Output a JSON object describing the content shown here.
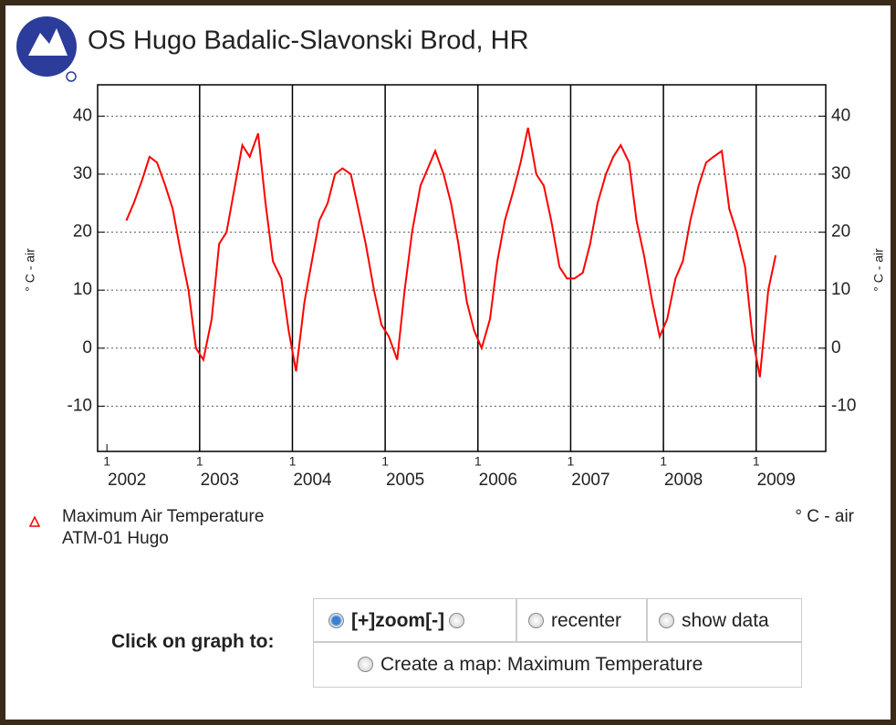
{
  "chart_data": {
    "type": "line",
    "title": "OS Hugo Badalic-Slavonski Brod, HR",
    "y_label": "° C - air",
    "x_day_label": "1",
    "x": [
      2002.21,
      2002.29,
      2002.38,
      2002.46,
      2002.54,
      2002.63,
      2002.71,
      2002.79,
      2002.88,
      2002.96,
      2003.04,
      2003.13,
      2003.21,
      2003.29,
      2003.38,
      2003.46,
      2003.54,
      2003.63,
      2003.71,
      2003.79,
      2003.88,
      2003.96,
      2004.04,
      2004.13,
      2004.21,
      2004.29,
      2004.38,
      2004.46,
      2004.54,
      2004.63,
      2004.71,
      2004.79,
      2004.88,
      2004.96,
      2005.04,
      2005.13,
      2005.21,
      2005.29,
      2005.38,
      2005.46,
      2005.54,
      2005.63,
      2005.71,
      2005.79,
      2005.88,
      2005.96,
      2006.04,
      2006.13,
      2006.21,
      2006.29,
      2006.38,
      2006.46,
      2006.54,
      2006.63,
      2006.71,
      2006.79,
      2006.88,
      2006.96,
      2007.04,
      2007.13,
      2007.21,
      2007.29,
      2007.38,
      2007.46,
      2007.54,
      2007.63,
      2007.71,
      2007.79,
      2007.88,
      2007.96,
      2008.04,
      2008.13,
      2008.21,
      2008.29,
      2008.38,
      2008.46,
      2008.54,
      2008.63,
      2008.71,
      2008.79,
      2008.88,
      2008.96,
      2009.04,
      2009.13,
      2009.21
    ],
    "series": [
      {
        "name": "Maximum Air Temperature",
        "sublabel": "ATM-01 Hugo",
        "color": "#ff0000",
        "values": [
          22,
          25,
          29,
          33,
          32,
          28,
          24,
          17,
          10,
          0,
          -2,
          5,
          18,
          20,
          28,
          35,
          33,
          37,
          25,
          15,
          12,
          3,
          -4,
          8,
          15,
          22,
          25,
          30,
          31,
          30,
          24,
          18,
          10,
          4,
          2,
          -2,
          10,
          20,
          28,
          31,
          34,
          30,
          25,
          18,
          8,
          3,
          0,
          5,
          15,
          22,
          27,
          32,
          38,
          30,
          28,
          22,
          14,
          12,
          12,
          13,
          18,
          25,
          30,
          33,
          35,
          32,
          22,
          16,
          8,
          2,
          5,
          12,
          15,
          22,
          28,
          32,
          33,
          34,
          24,
          20,
          14,
          2,
          -5,
          10,
          16
        ]
      }
    ],
    "xlim": [
      2001.9,
      2009.75
    ],
    "xticks": [
      2002,
      2003,
      2004,
      2005,
      2006,
      2007,
      2008,
      2009
    ],
    "ylim": [
      -17.8,
      45.4
    ],
    "yticks": [
      -10,
      0,
      10,
      20,
      30,
      40
    ],
    "grid": true
  },
  "controls": {
    "prompt": "Click on graph to:",
    "options": [
      "[+]zoom[-]",
      "recenter",
      "show data"
    ],
    "map_option": "Create a map: Maximum Temperature"
  }
}
